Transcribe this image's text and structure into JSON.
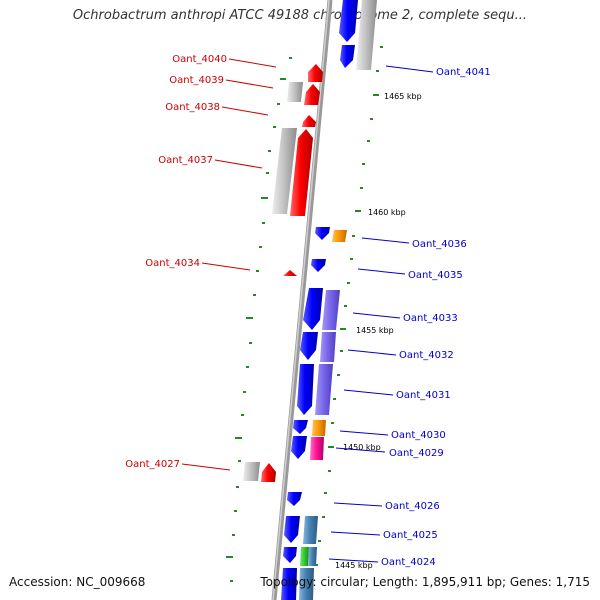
{
  "title": "Ochrobactrum anthropi ATCC 49188 chromosome 2, complete sequ...",
  "footer": {
    "accession": "Accession: NC_009668",
    "summary": "Topology: circular; Length: 1,895,911 bp; Genes: 1,715"
  },
  "colors": {
    "forward_label": "#cc0000",
    "reverse_label": "#0000cc",
    "tick": "#228b22",
    "backbone": "#888888"
  },
  "kbp_ticks": [
    "1465 kbp",
    "1460 kbp",
    "1455 kbp",
    "1450 kbp",
    "1445 kbp"
  ],
  "genes_forward": [
    "Oant_4040",
    "Oant_4039",
    "Oant_4038",
    "Oant_4037",
    "Oant_4034",
    "Oant_4027"
  ],
  "genes_reverse": [
    "Oant_4041",
    "Oant_4036",
    "Oant_4035",
    "Oant_4033",
    "Oant_4032",
    "Oant_4031",
    "Oant_4030",
    "Oant_4029",
    "Oant_4026",
    "Oant_4025",
    "Oant_4024"
  ]
}
